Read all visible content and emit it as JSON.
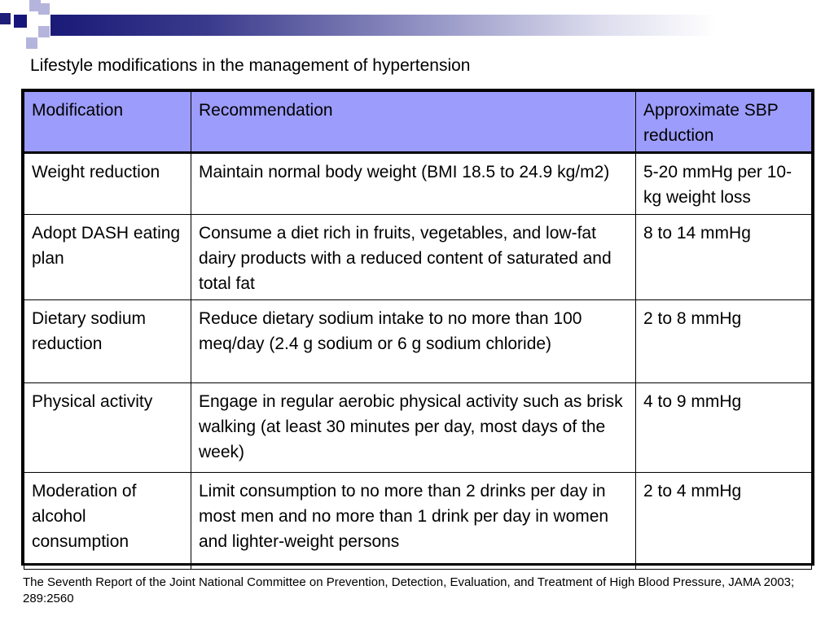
{
  "title": "Lifestyle modifications in the management of hypertension",
  "table": {
    "headers": {
      "modification": "Modification",
      "recommendation": "Recommendation",
      "sbp": "Approximate SBP reduction"
    },
    "rows": [
      {
        "modification": "Weight reduction",
        "recommendation": "Maintain normal body weight (BMI 18.5 to 24.9 kg/m2)",
        "sbp": "5-20 mmHg per 10-kg weight loss"
      },
      {
        "modification": "Adopt DASH eating plan",
        "recommendation": "Consume a diet rich in fruits, vegetables, and low-fat dairy products with a reduced content of saturated and total fat",
        "sbp": "8 to 14 mmHg"
      },
      {
        "modification": "Dietary sodium reduction",
        "recommendation": "Reduce dietary sodium intake to no more than 100 meq/day (2.4 g sodium or 6 g sodium chloride)",
        "sbp": "2 to 8 mmHg"
      },
      {
        "modification": "Physical activity",
        "recommendation": "Engage in regular aerobic physical activity such as brisk walking (at least 30 minutes per day, most days of the week)",
        "sbp": "4 to 9 mmHg"
      },
      {
        "modification": "Moderation of alcohol consumption",
        "recommendation": "Limit consumption to no more than 2 drinks per day in most men and no more than 1 drink per day in women and lighter-weight persons",
        "sbp": "2 to 4 mmHg"
      }
    ]
  },
  "citation": "The Seventh Report of the Joint National Committee on Prevention, Detection, Evaluation, and Treatment of High Blood Pressure, JAMA 2003; 289:2560",
  "colors": {
    "header_fill": "#9c9cfc",
    "accent_navy": "#1a1a78",
    "accent_lavender": "#b4b4dc"
  }
}
